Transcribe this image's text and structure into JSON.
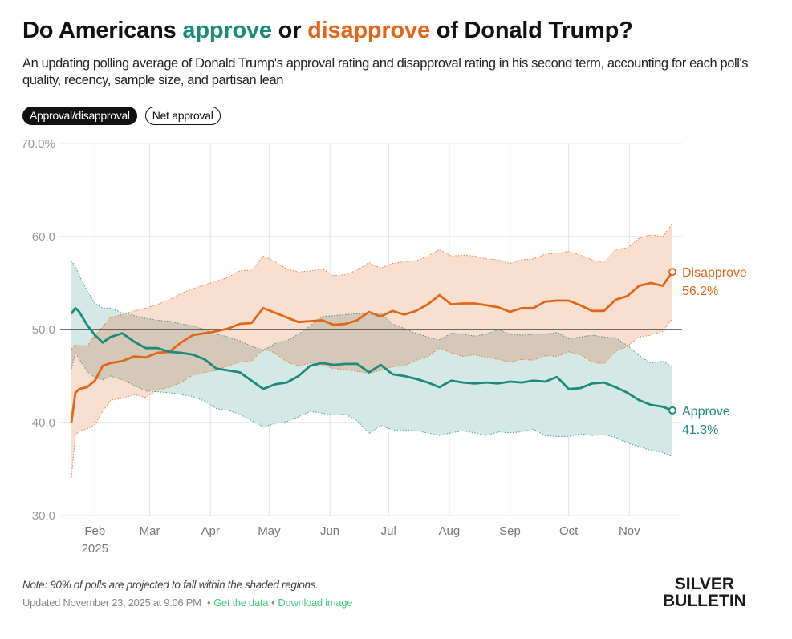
{
  "header": {
    "title_parts": [
      "Do Americans ",
      "approve",
      " or ",
      "disapprove",
      " of Donald Trump?"
    ],
    "subtitle": "An updating polling average of Donald Trump's approval rating and disapproval rating in his second term, accounting for each poll's quality, recency, sample size, and partisan lean"
  },
  "toggles": [
    {
      "label": "Approval/disapproval",
      "active": true
    },
    {
      "label": "Net approval",
      "active": false
    }
  ],
  "colors": {
    "approve": "#1c8a7b",
    "approve_band": "#cfe5e2",
    "disapprove": "#e0671a",
    "disapprove_band": "#f8dccb",
    "overlap_band": "#d6c6b5",
    "grid": "#e6e6e6",
    "reference": "#222222"
  },
  "chart_data": {
    "type": "line",
    "title": "Do Americans approve or disapprove of Donald Trump?",
    "xlabel": "",
    "ylabel": "",
    "ylim": [
      30,
      70
    ],
    "yticks": [
      30,
      40,
      50,
      60,
      70
    ],
    "ytick_labels": [
      "30.0",
      "40.0",
      "50.0",
      "60.0",
      "70.0%"
    ],
    "reference_line": 50,
    "grid": true,
    "x_tick_labels": [
      "Feb",
      "Mar",
      "Apr",
      "May",
      "Jun",
      "Jul",
      "Aug",
      "Sep",
      "Oct",
      "Nov"
    ],
    "x_tick_sublabel": "2025",
    "x_tick_days": [
      12,
      40,
      71,
      101,
      132,
      162,
      193,
      224,
      254,
      285
    ],
    "x_range_days": [
      0,
      307
    ],
    "x_origin": "2025-01-20",
    "band_note": "90% of polls projected to fall within the shaded regions",
    "x_days": [
      0,
      2,
      4,
      8,
      12,
      16,
      20,
      26,
      32,
      38,
      44,
      50,
      56,
      62,
      68,
      74,
      80,
      86,
      92,
      98,
      104,
      110,
      116,
      122,
      128,
      134,
      140,
      146,
      152,
      158,
      164,
      170,
      176,
      182,
      188,
      194,
      200,
      206,
      212,
      218,
      224,
      230,
      236,
      242,
      248,
      254,
      260,
      266,
      272,
      278,
      284,
      290,
      296,
      302,
      307
    ],
    "series": [
      {
        "name": "Approve",
        "end_label": "Approve",
        "end_value_label": "41.3%",
        "values": [
          51.7,
          52.3,
          51.9,
          50.5,
          49.4,
          48.6,
          49.2,
          49.6,
          48.7,
          48.0,
          48.0,
          47.6,
          47.5,
          47.3,
          46.8,
          45.8,
          45.6,
          45.4,
          44.5,
          43.6,
          44.1,
          44.3,
          45.0,
          46.1,
          46.4,
          46.2,
          46.3,
          46.3,
          45.4,
          46.2,
          45.2,
          45.0,
          44.7,
          44.3,
          43.8,
          44.5,
          44.3,
          44.2,
          44.3,
          44.2,
          44.4,
          44.3,
          44.5,
          44.4,
          44.9,
          43.6,
          43.7,
          44.2,
          44.3,
          43.8,
          43.2,
          42.4,
          41.9,
          41.7,
          41.3
        ],
        "lower": [
          45.8,
          47.5,
          46.8,
          45.5,
          44.8,
          44.6,
          45.0,
          44.6,
          44.0,
          43.4,
          43.3,
          43.2,
          43.0,
          42.8,
          42.3,
          41.5,
          41.3,
          40.9,
          40.2,
          39.5,
          39.9,
          40.1,
          40.6,
          41.2,
          41.0,
          40.8,
          40.9,
          40.2,
          38.8,
          39.7,
          39.2,
          39.2,
          39.1,
          38.9,
          38.6,
          38.9,
          39.1,
          38.9,
          38.6,
          39.0,
          38.9,
          39.0,
          39.3,
          38.6,
          38.5,
          38.5,
          38.8,
          38.6,
          38.7,
          38.4,
          37.8,
          37.4,
          37.0,
          36.8,
          36.3
        ],
        "upper": [
          57.4,
          56.8,
          55.8,
          54.2,
          52.8,
          52.3,
          52.3,
          51.8,
          51.5,
          51.2,
          51.0,
          50.9,
          50.6,
          50.4,
          50.0,
          49.5,
          49.2,
          48.8,
          48.2,
          47.7,
          48.5,
          48.8,
          49.5,
          50.4,
          51.4,
          51.5,
          51.6,
          51.7,
          51.6,
          51.8,
          50.6,
          50.1,
          49.6,
          49.2,
          48.9,
          49.6,
          49.5,
          49.3,
          49.5,
          50.0,
          49.5,
          49.4,
          49.5,
          49.5,
          49.7,
          49.0,
          49.2,
          49.4,
          49.2,
          49.1,
          48.3,
          47.2,
          46.4,
          46.6,
          46.0
        ]
      },
      {
        "name": "Disapprove",
        "end_label": "Disapprove",
        "end_value_label": "56.2%",
        "values": [
          40.0,
          43.2,
          43.6,
          43.8,
          44.5,
          46.1,
          46.4,
          46.6,
          47.1,
          47.0,
          47.5,
          47.6,
          48.6,
          49.4,
          49.6,
          49.8,
          50.1,
          50.6,
          50.7,
          52.3,
          51.8,
          51.3,
          50.8,
          50.9,
          51.0,
          50.5,
          50.6,
          51.0,
          51.9,
          51.4,
          52.0,
          51.6,
          52.0,
          52.7,
          53.7,
          52.7,
          52.8,
          52.8,
          52.6,
          52.4,
          51.9,
          52.3,
          52.3,
          53.0,
          53.1,
          53.1,
          52.6,
          52.0,
          52.0,
          53.2,
          53.6,
          54.7,
          55.0,
          54.7,
          56.2
        ],
        "lower": [
          34.1,
          38.6,
          39.1,
          39.3,
          39.8,
          41.2,
          42.4,
          42.6,
          43.0,
          42.7,
          43.5,
          43.8,
          44.3,
          45.1,
          45.4,
          45.6,
          46.1,
          46.5,
          46.6,
          47.9,
          47.5,
          46.5,
          46.1,
          46.4,
          46.2,
          45.8,
          45.7,
          45.5,
          45.3,
          45.6,
          46.0,
          46.1,
          46.7,
          47.1,
          48.0,
          47.5,
          47.1,
          47.3,
          47.0,
          46.8,
          46.5,
          46.8,
          46.7,
          47.2,
          47.1,
          47.6,
          47.3,
          46.5,
          46.3,
          47.7,
          48.2,
          49.2,
          49.4,
          49.8,
          51.2
        ],
        "upper": [
          47.9,
          48.3,
          48.3,
          48.2,
          49.4,
          50.3,
          51.3,
          51.6,
          52.0,
          52.3,
          52.7,
          53.2,
          53.9,
          54.4,
          54.8,
          55.2,
          55.6,
          56.3,
          56.4,
          57.9,
          57.3,
          56.5,
          56.2,
          56.3,
          56.5,
          55.8,
          55.9,
          56.4,
          57.2,
          56.6,
          57.1,
          57.3,
          57.4,
          57.9,
          58.6,
          57.9,
          58.0,
          57.9,
          57.6,
          57.5,
          57.1,
          57.5,
          57.6,
          58.1,
          58.2,
          58.4,
          58.0,
          57.5,
          57.2,
          58.6,
          58.8,
          59.8,
          60.2,
          60.0,
          61.4
        ]
      }
    ]
  },
  "footer": {
    "note": "Note: 90% of polls are projected to fall within the shaded regions.",
    "updated": "Updated November 23, 2025 at 9:06 PM",
    "get_data": "Get the data",
    "download": "Download image",
    "separator": "•"
  },
  "logo": {
    "line1": "SILVER",
    "line2": "BULLETIN"
  }
}
